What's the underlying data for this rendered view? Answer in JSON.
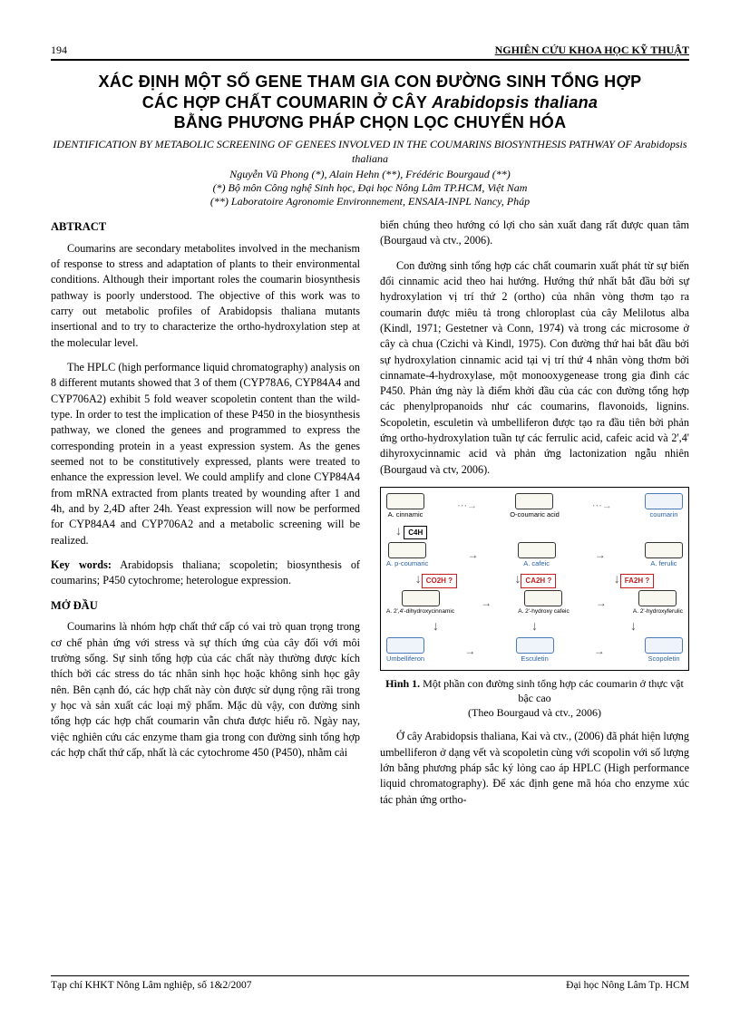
{
  "header": {
    "page_number": "194",
    "section": "NGHIÊN CỨU KHOA HỌC KỸ THUẬT"
  },
  "title": {
    "line1": "XÁC ĐỊNH MỘT SỐ GENE THAM GIA CON ĐƯỜNG SINH TỔNG HỢP",
    "line2a": "CÁC HỢP CHẤT COUMARIN Ở CÂY ",
    "line2b": "Arabidopsis thaliana",
    "line3": "BẰNG PHƯƠNG PHÁP CHỌN LỌC CHUYỂN HÓA",
    "subtitle_en": "IDENTIFICATION BY METABOLIC SCREENING OF GENEES INVOLVED IN THE COUMARINS BIOSYNTHESIS PATHWAY OF Arabidopsis thaliana",
    "authors": "Nguyễn Vũ Phong (*), Alain Hehn (**), Frédéric Bourgaud (**)",
    "affil1": "(*) Bộ môn Công nghệ Sinh học, Đại học Nông Lâm TP.HCM, Việt Nam",
    "affil2": "(**) Laboratoire Agronomie Environnement, ENSAIA-INPL Nancy, Pháp"
  },
  "left_column": {
    "abstract_heading": "ABTRACT",
    "abstract_p1": "Coumarins are secondary metabolites involved in the mechanism of response to stress and adaptation of plants to their environmental conditions. Although their important roles the coumarin biosynthesis pathway is poorly understood. The objective of this work was to carry out metabolic profiles of Arabidopsis thaliana mutants insertional and to try to characterize the ortho-hydroxylation step at the molecular level.",
    "abstract_p2": "The HPLC (high performance liquid chromatography) analysis on 8 different mutants showed that 3 of them (CYP78A6, CYP84A4 and CYP706A2) exhibit 5 fold weaver scopoletin content than the wild-type. In order to test the implication of these P450 in the biosynthesis pathway, we cloned the genees and programmed to express the corresponding protein in a yeast expression system. As the genes seemed not to be constitutively expressed, plants were treated to enhance the expression level. We could amplify and clone CYP84A4 from mRNA extracted from plants treated by wounding after 1 and 4h, and by 2,4D after 24h. Yeast expression will now be performed for CYP84A4 and CYP706A2 and a metabolic screening will be realized.",
    "keywords_label": "Key words:",
    "keywords_text": " Arabidopsis thaliana; scopoletin; biosynthesis of coumarins; P450 cytochrome; heterologue expression.",
    "intro_heading": "MỞ ĐẦU",
    "intro_p1": "Coumarins là nhóm hợp chất thứ cấp có vai trò quan trọng trong cơ chế phản ứng với stress và sự thích ứng của cây đối với môi trường sống. Sự sinh tổng hợp của các chất này thường được kích thích bởi các stress do tác nhân sinh học hoặc không sinh học gây nên. Bên cạnh đó, các hợp chất này còn được sử dụng rộng rãi trong y học và sản xuất các loại mỹ phẩm. Mặc dù vậy, con đường sinh tổng hợp các hợp chất coumarin vẫn chưa được hiểu rõ. Ngày nay, việc nghiên cứu các enzyme tham gia trong con đường sinh tổng hợp các hợp chất thứ cấp, nhất là các cytochrome 450 (P450), nhằm cải"
  },
  "right_column": {
    "p1": "biến chúng theo hướng có lợi cho sản xuất đang rất được quan tâm (Bourgaud và ctv., 2006).",
    "p2": "Con đường sinh tổng hợp các chất coumarin xuất phát từ sự biến đổi cinnamic acid theo hai hướng. Hướng thứ nhất bắt đầu bởi sự hydroxylation vị trí thứ 2 (ortho) của nhân vòng thơm tạo ra coumarin được miêu tả trong chloroplast của cây Melilotus alba (Kindl, 1971; Gestetner và Conn, 1974) và trong các microsome ở cây cà chua (Czichi và Kindl, 1975). Con đường thứ hai bắt đầu bởi sự hydroxylation cinnamic acid tại vị trí thứ 4 nhân vòng thơm bởi cinnamate-4-hydroxylase, một monooxygenease trong gia đình các P450. Phản ứng này là điểm khởi đầu của các con đường tổng hợp các phenylpropanoids như các coumarins, flavonoids, lignins. Scopoletin, esculetin và umbelliferon được tạo ra đầu tiên bởi phản ứng ortho-hydroxylation tuần tự các ferrulic acid, cafeic acid và 2',4' dihyroxycinnamic acid và phản ứng lactonization ngẫu nhiên (Bourgaud và ctv, 2006).",
    "figure": {
      "caption_label": "Hình 1.",
      "caption_text": " Một phần con đường sinh tổng hợp các coumarin ở thực vật bậc cao",
      "caption_source": "(Theo Bourgaud và ctv., 2006)",
      "nodes": {
        "cinnamic": "A. cinnamic",
        "o_coumaric": "O-coumaric acid",
        "coumarin": "coumarin",
        "c4h": "C4H",
        "p_coumaric": "A. p-coumaric",
        "cafeic": "A. cafeic",
        "ferulic": "A. ferulic",
        "co2h": "CO2H ?",
        "ca2h": "CA2H ?",
        "fa2h": "FA2H ?",
        "dihydroxy": "A. 2',4'-dihydroxycinnamic",
        "hydroxy_cafeic": "A. 2'-hydroxy cafeic",
        "hydroxy_ferulic": "A. 2'-hydroxyferulic",
        "umbelliferon": "Umbelliferon",
        "esculetin": "Esculetin",
        "scopoletin": "Scopoletin"
      }
    },
    "p3": "Ở cây Arabidopsis thaliana, Kai và ctv., (2006) đã phát hiện lượng umbelliferon ở dạng vết và scopoletin cùng với scopolin với số lượng lớn bằng phương pháp sắc ký lỏng cao áp HPLC (High performance liquid chromatography). Để xác định gene mã hóa cho enzyme xúc tác phản ứng ortho-"
  },
  "footer": {
    "left": "Tạp chí KHKT Nông Lâm nghiệp, số 1&2/2007",
    "right": "Đại học Nông Lâm Tp. HCM"
  }
}
